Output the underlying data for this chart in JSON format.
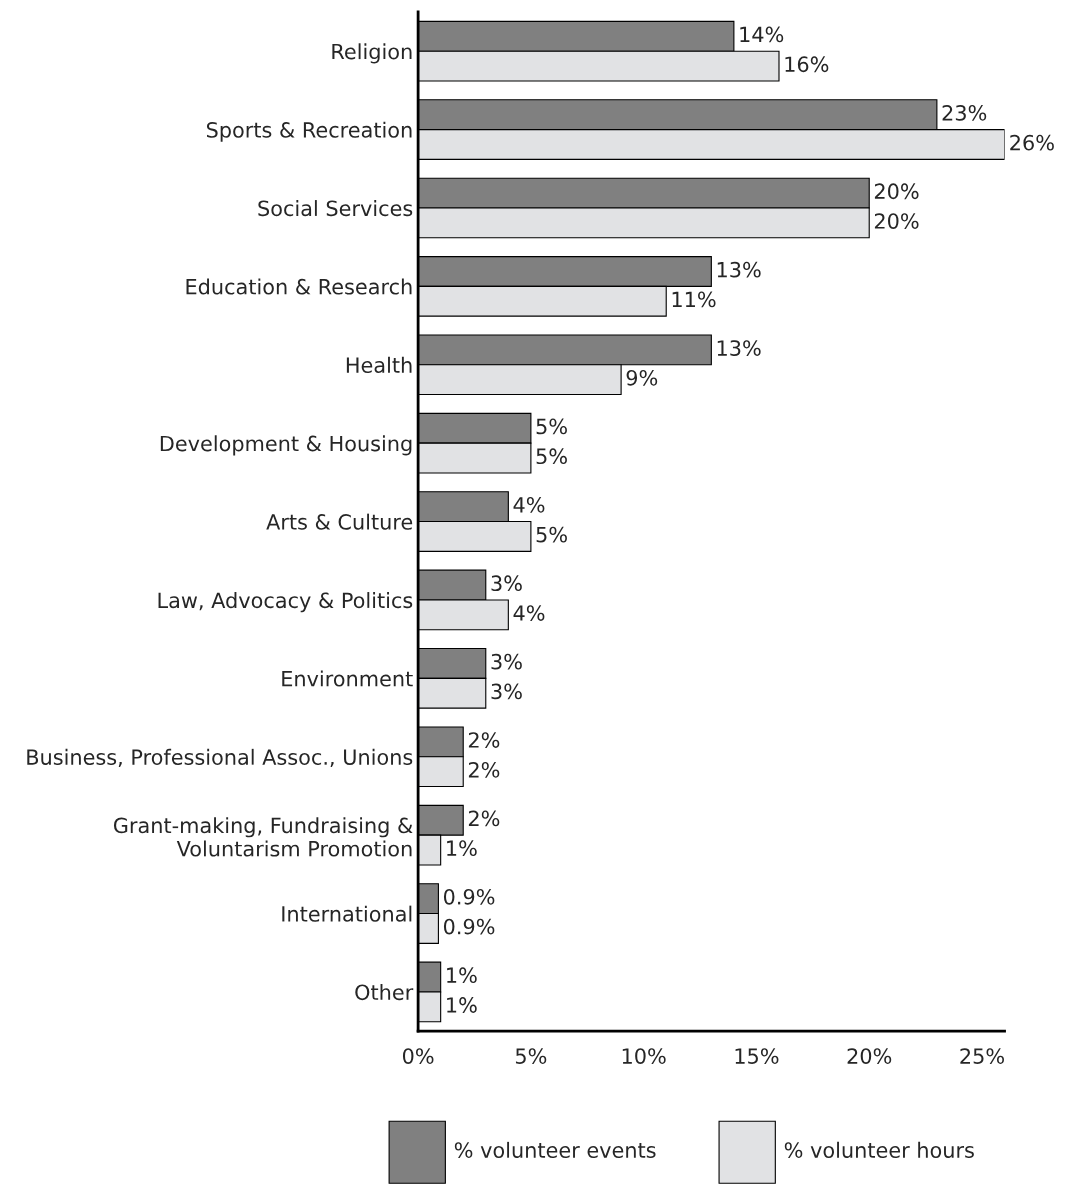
{
  "chart_data": {
    "type": "bar",
    "orientation": "horizontal",
    "categories": [
      "Religion",
      "Sports & Recreation",
      "Social Services",
      "Education & Research",
      "Health",
      "Development & Housing",
      "Arts & Culture",
      "Law, Advocacy & Politics",
      "Environment",
      "Business, Professional Assoc., Unions",
      "Grant-making, Fundraising &\nVoluntarism Promotion",
      "International",
      "Other"
    ],
    "series": [
      {
        "name": "% volunteer events",
        "color": "#808080",
        "values": [
          14,
          23,
          20,
          13,
          13,
          5,
          4,
          3,
          3,
          2,
          2,
          0.9,
          1
        ],
        "value_labels": [
          "14%",
          "23%",
          "20%",
          "13%",
          "13%",
          "5%",
          "4%",
          "3%",
          "3%",
          "2%",
          "2%",
          "0.9%",
          "1%"
        ]
      },
      {
        "name": "% volunteer hours",
        "color": "#e1e2e4",
        "values": [
          16,
          26,
          20,
          11,
          9,
          5,
          5,
          4,
          3,
          2,
          1,
          0.9,
          1
        ],
        "value_labels": [
          "16%",
          "26%",
          "20%",
          "11%",
          "9%",
          "5%",
          "5%",
          "4%",
          "3%",
          "2%",
          "1%",
          "0.9%",
          "1%"
        ]
      }
    ],
    "xlim": [
      0,
      26
    ],
    "xticks": [
      {
        "value": 0,
        "label": "0%"
      },
      {
        "value": 5,
        "label": "5%"
      },
      {
        "value": 10,
        "label": "10%"
      },
      {
        "value": 15,
        "label": "15%"
      },
      {
        "value": 20,
        "label": "20%"
      },
      {
        "value": 25,
        "label": "25%"
      }
    ],
    "grid": false,
    "legend": "bottom"
  }
}
